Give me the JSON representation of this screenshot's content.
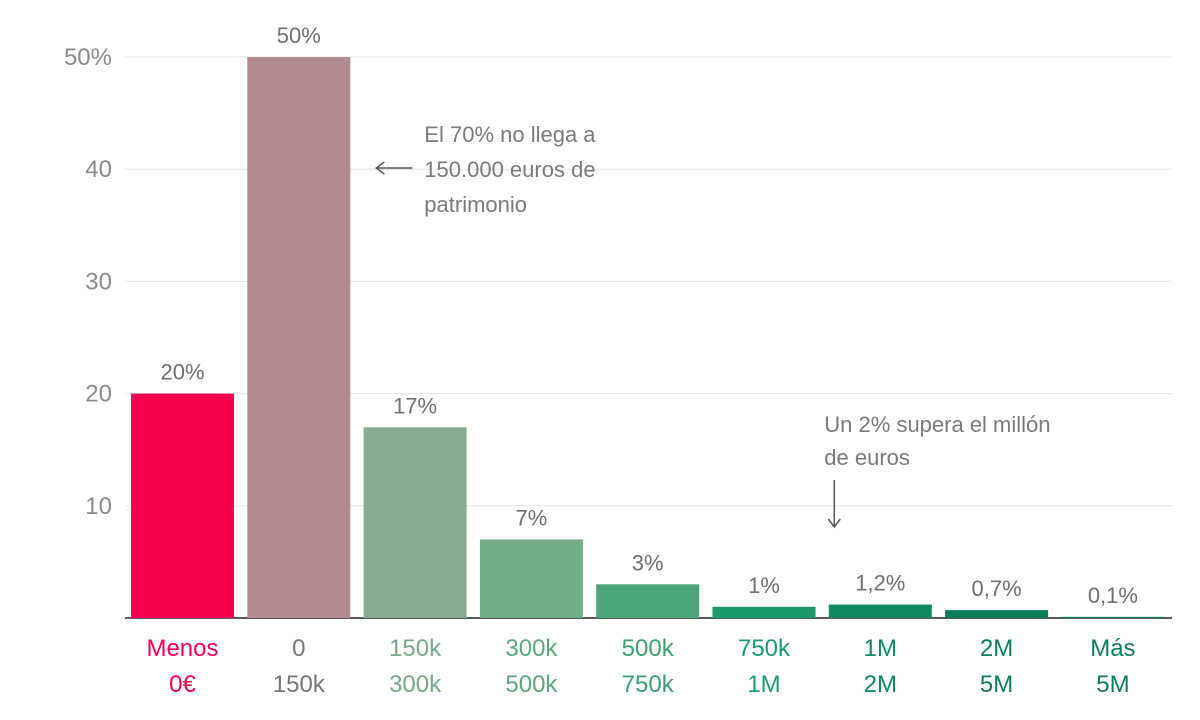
{
  "chart_data": {
    "type": "bar",
    "categories": [
      [
        "Menos",
        "0€"
      ],
      [
        "0",
        "150k"
      ],
      [
        "150k",
        "300k"
      ],
      [
        "300k",
        "500k"
      ],
      [
        "500k",
        "750k"
      ],
      [
        "750k",
        "1M"
      ],
      [
        "1M",
        "2M"
      ],
      [
        "2M",
        "5M"
      ],
      [
        "Más",
        "5M"
      ]
    ],
    "values": [
      20,
      50,
      17,
      7,
      3,
      1,
      1.2,
      0.7,
      0.1
    ],
    "value_labels": [
      "20%",
      "50%",
      "17%",
      "7%",
      "3%",
      "1%",
      "1,2%",
      "0,7%",
      "0,1%"
    ],
    "colors": [
      "#f5004f",
      "#b08a8e",
      "#8aaa93",
      "#72ad8a",
      "#4aa77a",
      "#1b9a6c",
      "#0f8a5f",
      "#0c7e57",
      "#0c7e57"
    ],
    "label_colors": [
      "#f5004f",
      "#777777",
      "#77a889",
      "#5da57f",
      "#3d9e73",
      "#1b9a6c",
      "#0f8a5f",
      "#0c7e57",
      "#0c7e57"
    ],
    "y_ticks": [
      {
        "value": 10,
        "label": "10"
      },
      {
        "value": 20,
        "label": "20"
      },
      {
        "value": 30,
        "label": "30"
      },
      {
        "value": 40,
        "label": "40"
      },
      {
        "value": 50,
        "label": "50%"
      }
    ],
    "ylim": [
      0,
      50
    ],
    "title": "",
    "xlabel": "",
    "ylabel": "",
    "grid": true,
    "annotations": [
      {
        "lines": [
          "El 70% no llega a",
          "150.000 euros de",
          "patrimonio"
        ],
        "arrow": "left",
        "target": 1
      },
      {
        "lines": [
          "Un 2% supera el millón",
          "de euros"
        ],
        "arrow": "down",
        "target": 6
      }
    ]
  }
}
